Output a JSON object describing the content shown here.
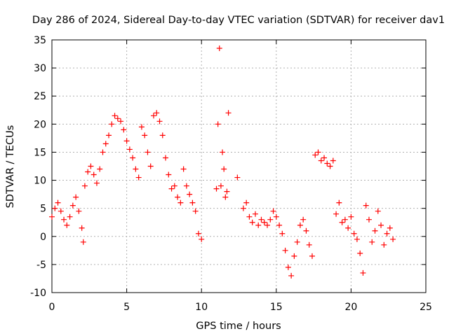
{
  "chart_data": {
    "type": "scatter",
    "title": "Day 286 of 2024, Sidereal Day-to-day VTEC variation (SDTVAR) for receiver dav1",
    "xlabel": "GPS time / hours",
    "ylabel": "SDTVAR / TECUs",
    "xlim": [
      0,
      25
    ],
    "ylim": [
      -10,
      35
    ],
    "xticks": [
      0,
      5,
      10,
      15,
      20,
      25
    ],
    "yticks": [
      -10,
      -5,
      0,
      5,
      10,
      15,
      20,
      25,
      30,
      35
    ],
    "grid": true,
    "marker": "+",
    "series": [
      {
        "name": "dav1",
        "color": "#ff0000",
        "x": [
          0.0,
          0.2,
          0.4,
          0.6,
          0.8,
          1.0,
          1.2,
          1.4,
          1.6,
          1.8,
          2.0,
          2.1,
          2.2,
          2.4,
          2.6,
          2.8,
          3.0,
          3.2,
          3.4,
          3.6,
          3.8,
          4.0,
          4.2,
          4.4,
          4.6,
          4.8,
          5.0,
          5.2,
          5.4,
          5.6,
          5.8,
          6.0,
          6.2,
          6.4,
          6.6,
          6.8,
          7.0,
          7.2,
          7.4,
          7.6,
          7.8,
          8.0,
          8.2,
          8.4,
          8.6,
          8.8,
          9.0,
          9.2,
          9.4,
          9.6,
          9.8,
          10.0,
          11.0,
          11.1,
          11.2,
          11.3,
          11.4,
          11.5,
          11.6,
          11.7,
          11.8,
          12.4,
          12.8,
          13.0,
          13.2,
          13.4,
          13.6,
          13.8,
          14.0,
          14.2,
          14.4,
          14.6,
          14.8,
          15.0,
          15.2,
          15.4,
          15.6,
          15.8,
          16.0,
          16.2,
          16.4,
          16.6,
          16.8,
          17.0,
          17.2,
          17.4,
          17.6,
          17.8,
          18.0,
          18.2,
          18.4,
          18.6,
          18.8,
          19.0,
          19.2,
          19.4,
          19.6,
          19.8,
          20.0,
          20.2,
          20.4,
          20.6,
          20.8,
          21.0,
          21.2,
          21.4,
          21.6,
          21.8,
          22.0,
          22.2,
          22.4,
          22.6,
          22.8
        ],
        "values": [
          3.5,
          5.0,
          6.0,
          4.5,
          3.0,
          2.0,
          3.5,
          5.5,
          7.0,
          4.5,
          1.5,
          -1.0,
          9.0,
          11.5,
          12.5,
          11.0,
          9.5,
          12.0,
          15.0,
          16.5,
          18.0,
          20.0,
          21.5,
          21.0,
          20.5,
          19.0,
          17.0,
          15.5,
          14.0,
          12.0,
          10.5,
          19.5,
          18.0,
          15.0,
          12.5,
          21.5,
          22.0,
          20.5,
          18.0,
          14.0,
          11.0,
          8.5,
          9.0,
          7.0,
          6.0,
          12.0,
          9.0,
          7.5,
          6.0,
          4.5,
          0.5,
          -0.5,
          8.5,
          20.0,
          33.5,
          9.0,
          15.0,
          12.0,
          7.0,
          8.0,
          22.0,
          10.5,
          5.0,
          6.0,
          3.5,
          2.5,
          4.0,
          2.0,
          3.0,
          2.5,
          2.0,
          3.0,
          4.5,
          3.5,
          2.0,
          0.5,
          -2.5,
          -5.5,
          -7.0,
          -3.5,
          -1.0,
          2.0,
          3.0,
          1.0,
          -1.5,
          -3.5,
          14.5,
          15.0,
          13.5,
          14.0,
          13.0,
          12.5,
          13.5,
          4.0,
          6.0,
          2.5,
          3.0,
          1.5,
          3.5,
          0.5,
          -0.5,
          -3.0,
          -6.5,
          5.5,
          3.0,
          -1.0,
          1.0,
          4.5,
          2.0,
          -1.5,
          0.5,
          1.5,
          -0.5
        ]
      }
    ]
  }
}
